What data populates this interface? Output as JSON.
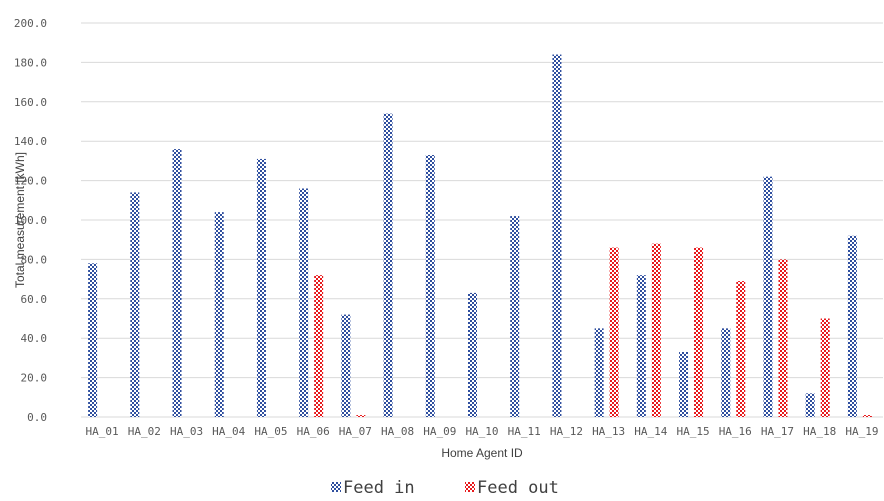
{
  "chart_data": {
    "type": "bar",
    "xlabel": "Home Agent ID",
    "ylabel": "Total measurement [kWh]",
    "ylim": [
      0,
      200
    ],
    "yticks": [
      0,
      20,
      40,
      60,
      80,
      100,
      120,
      140,
      160,
      180,
      200
    ],
    "ytick_labels": [
      "0.0",
      "20.0",
      "40.0",
      "60.0",
      "80.0",
      "100.0",
      "120.0",
      "140.0",
      "160.0",
      "180.0",
      "200.0"
    ],
    "grid": true,
    "legend_position": "bottom",
    "categories": [
      "HA_01",
      "HA_02",
      "HA_03",
      "HA_04",
      "HA_05",
      "HA_06",
      "HA_07",
      "HA_08",
      "HA_09",
      "HA_10",
      "HA_11",
      "HA_12",
      "HA_13",
      "HA_14",
      "HA_15",
      "HA_16",
      "HA_17",
      "HA_18",
      "HA_19"
    ],
    "series": [
      {
        "name": "Feed in",
        "color": "#2f4f9f",
        "pattern": "dotted-blue",
        "values": [
          78,
          114,
          136,
          104,
          131,
          116,
          52,
          154,
          133,
          63,
          102,
          184,
          45,
          72,
          33,
          45,
          122,
          12,
          92
        ]
      },
      {
        "name": "Feed out",
        "color": "#e8191c",
        "pattern": "dotted-red",
        "values": [
          0,
          0,
          0,
          0,
          0,
          72,
          1,
          0,
          0,
          0,
          0,
          0,
          86,
          88,
          86,
          69,
          80,
          50,
          1
        ]
      }
    ]
  }
}
